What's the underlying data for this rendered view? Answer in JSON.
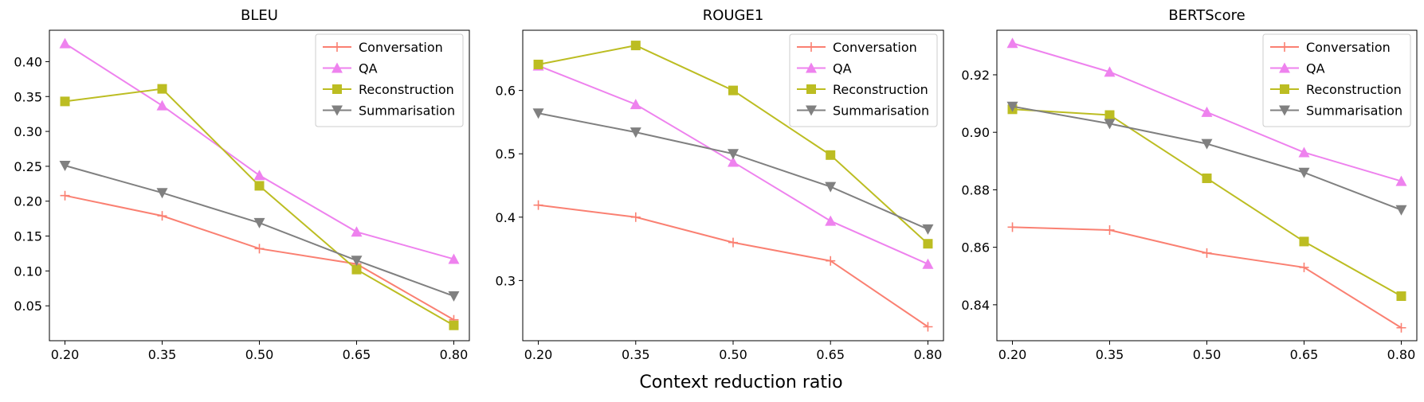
{
  "figure": {
    "supxlabel": "Context reduction ratio"
  },
  "chart_data": [
    {
      "type": "line",
      "title": "BLEU",
      "xlabel": "",
      "ylabel": "",
      "x": [
        0.2,
        0.35,
        0.5,
        0.65,
        0.8
      ],
      "xticks": [
        "0.20",
        "0.35",
        "0.50",
        "0.65",
        "0.80"
      ],
      "ylim": [
        0.0,
        0.445
      ],
      "yticks": [
        0.05,
        0.1,
        0.15,
        0.2,
        0.25,
        0.3,
        0.35,
        0.4
      ],
      "ytick_labels": [
        "0.05",
        "0.10",
        "0.15",
        "0.20",
        "0.25",
        "0.30",
        "0.35",
        "0.40"
      ],
      "legend": "top-right",
      "grid": false,
      "series": [
        {
          "name": "Conversation",
          "color": "#fa8072",
          "marker": "plus",
          "values": [
            0.208,
            0.179,
            0.132,
            0.11,
            0.03
          ]
        },
        {
          "name": "QA",
          "color": "#ee82ee",
          "marker": "triangle-up",
          "values": [
            0.426,
            0.337,
            0.237,
            0.156,
            0.117
          ]
        },
        {
          "name": "Reconstruction",
          "color": "#bcbd22",
          "marker": "square",
          "values": [
            0.343,
            0.361,
            0.222,
            0.102,
            0.022
          ]
        },
        {
          "name": "Summarisation",
          "color": "#808080",
          "marker": "triangle-down",
          "values": [
            0.251,
            0.212,
            0.169,
            0.115,
            0.064
          ]
        }
      ]
    },
    {
      "type": "line",
      "title": "ROUGE1",
      "xlabel": "",
      "ylabel": "",
      "x": [
        0.2,
        0.35,
        0.5,
        0.65,
        0.8
      ],
      "xticks": [
        "0.20",
        "0.35",
        "0.50",
        "0.65",
        "0.80"
      ],
      "ylim": [
        0.205,
        0.695
      ],
      "yticks": [
        0.3,
        0.4,
        0.5,
        0.6
      ],
      "ytick_labels": [
        "0.3",
        "0.4",
        "0.5",
        "0.6"
      ],
      "legend": "top-right",
      "grid": false,
      "series": [
        {
          "name": "Conversation",
          "color": "#fa8072",
          "marker": "plus",
          "values": [
            0.419,
            0.4,
            0.36,
            0.331,
            0.227
          ]
        },
        {
          "name": "QA",
          "color": "#ee82ee",
          "marker": "triangle-up",
          "values": [
            0.639,
            0.578,
            0.487,
            0.394,
            0.326
          ]
        },
        {
          "name": "Reconstruction",
          "color": "#bcbd22",
          "marker": "square",
          "values": [
            0.641,
            0.671,
            0.6,
            0.498,
            0.358
          ]
        },
        {
          "name": "Summarisation",
          "color": "#808080",
          "marker": "triangle-down",
          "values": [
            0.564,
            0.534,
            0.5,
            0.448,
            0.381
          ]
        }
      ]
    },
    {
      "type": "line",
      "title": "BERTScore",
      "xlabel": "",
      "ylabel": "",
      "x": [
        0.2,
        0.35,
        0.5,
        0.65,
        0.8
      ],
      "xticks": [
        "0.20",
        "0.35",
        "0.50",
        "0.65",
        "0.80"
      ],
      "ylim": [
        0.8275,
        0.9355
      ],
      "yticks": [
        0.84,
        0.86,
        0.88,
        0.9,
        0.92
      ],
      "ytick_labels": [
        "0.84",
        "0.86",
        "0.88",
        "0.90",
        "0.92"
      ],
      "legend": "top-right",
      "grid": false,
      "series": [
        {
          "name": "Conversation",
          "color": "#fa8072",
          "marker": "plus",
          "values": [
            0.867,
            0.866,
            0.858,
            0.853,
            0.832
          ]
        },
        {
          "name": "QA",
          "color": "#ee82ee",
          "marker": "triangle-up",
          "values": [
            0.931,
            0.921,
            0.907,
            0.893,
            0.883
          ]
        },
        {
          "name": "Reconstruction",
          "color": "#bcbd22",
          "marker": "square",
          "values": [
            0.908,
            0.906,
            0.884,
            0.862,
            0.843
          ]
        },
        {
          "name": "Summarisation",
          "color": "#808080",
          "marker": "triangle-down",
          "values": [
            0.909,
            0.903,
            0.896,
            0.886,
            0.873
          ]
        }
      ]
    }
  ]
}
